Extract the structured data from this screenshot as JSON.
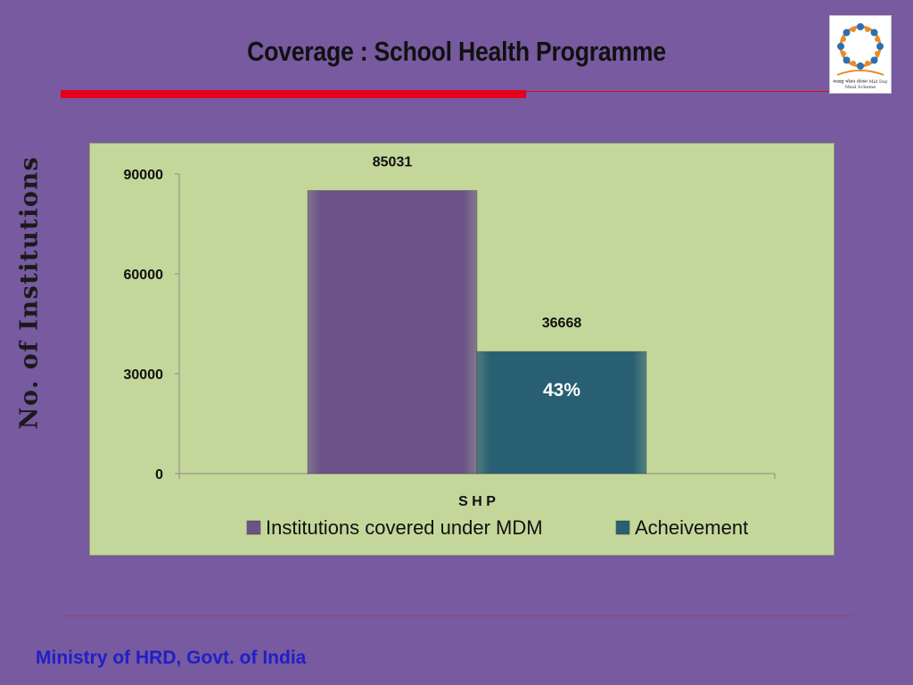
{
  "slide": {
    "title": "Coverage : School Health Programme",
    "y_axis_label": "No. of Institutions",
    "footer": "Ministry of HRD, Govt. of India",
    "logo_text": "मध्याह्न भोजन योजना Mid Day Meal Scheme"
  },
  "chart_data": {
    "type": "bar",
    "categories": [
      "S H P"
    ],
    "series": [
      {
        "name": "Institutions covered under MDM",
        "values": [
          85031
        ],
        "color": "#6a5287"
      },
      {
        "name": "Acheivement",
        "values": [
          36668
        ],
        "color": "#285f72"
      }
    ],
    "data_labels": [
      "85031",
      "36668"
    ],
    "annotation": "43%",
    "ylim": [
      0,
      90000
    ],
    "yticks": [
      0,
      30000,
      60000,
      90000
    ],
    "legend_position": "bottom",
    "grid": false
  },
  "colors": {
    "background": "#775a9f",
    "plot_area": "#c4d79b",
    "accent_rule": "#e3001b",
    "footer_text": "#1f1fc8"
  }
}
